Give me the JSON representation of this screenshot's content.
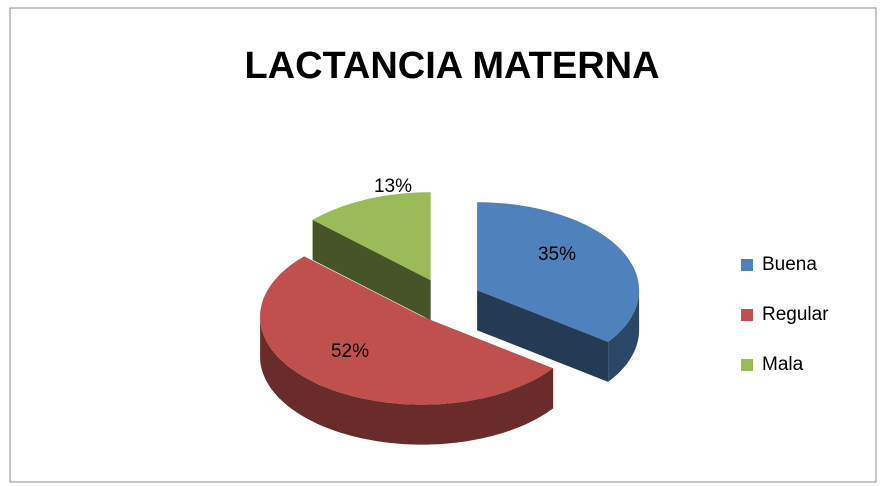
{
  "chart_data": {
    "type": "pie",
    "title": "LACTANCIA MATERNA",
    "categories": [
      "Buena",
      "Regular",
      "Mala"
    ],
    "values": [
      35,
      52,
      13
    ],
    "value_labels": [
      "35%",
      "52%",
      "13%"
    ],
    "colors": [
      "#4f81bd",
      "#c0504d",
      "#9bbb59"
    ],
    "legend": "right"
  }
}
